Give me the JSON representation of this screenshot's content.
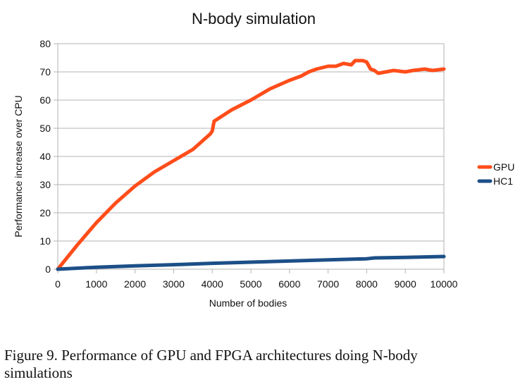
{
  "chart_data": {
    "type": "line",
    "title": "N-body simulation",
    "xlabel": "Number of bodies",
    "ylabel": "Performance increase over CPU",
    "xlim": [
      0,
      10000
    ],
    "ylim": [
      0,
      80
    ],
    "x_ticks": [
      0,
      1000,
      2000,
      3000,
      4000,
      5000,
      6000,
      7000,
      8000,
      9000,
      10000
    ],
    "y_ticks": [
      0,
      10,
      20,
      30,
      40,
      50,
      60,
      70,
      80
    ],
    "grid": "horizontal",
    "legend_position": "right",
    "series": [
      {
        "name": "GPU",
        "color": "#ff4d1a",
        "x": [
          0,
          500,
          1000,
          1500,
          2000,
          2500,
          3000,
          3500,
          3950,
          4000,
          4050,
          4500,
          5000,
          5500,
          6000,
          6300,
          6500,
          6700,
          7000,
          7200,
          7400,
          7600,
          7700,
          7900,
          8000,
          8100,
          8200,
          8300,
          8500,
          8700,
          9000,
          9200,
          9500,
          9700,
          10000
        ],
        "y": [
          0,
          8.5,
          16.5,
          23.5,
          29.5,
          34.5,
          38.5,
          42.5,
          48,
          49,
          52.5,
          56.5,
          60,
          64,
          67,
          68.5,
          70,
          71,
          72,
          72,
          73,
          72.5,
          74,
          74,
          73.5,
          71,
          70.5,
          69.5,
          70,
          70.5,
          70,
          70.5,
          71,
          70.5,
          71
        ]
      },
      {
        "name": "HC1",
        "color": "#1c4f87",
        "x": [
          0,
          1000,
          2000,
          3000,
          4000,
          5000,
          6000,
          7000,
          8000,
          8200,
          9000,
          10000
        ],
        "y": [
          0,
          0.7,
          1.2,
          1.6,
          2.1,
          2.5,
          2.9,
          3.3,
          3.7,
          4.0,
          4.2,
          4.5
        ]
      }
    ]
  },
  "caption": {
    "line1": "Figure 9.    Performance of GPU and FPGA architectures doing N-body",
    "line2": "simulations"
  }
}
